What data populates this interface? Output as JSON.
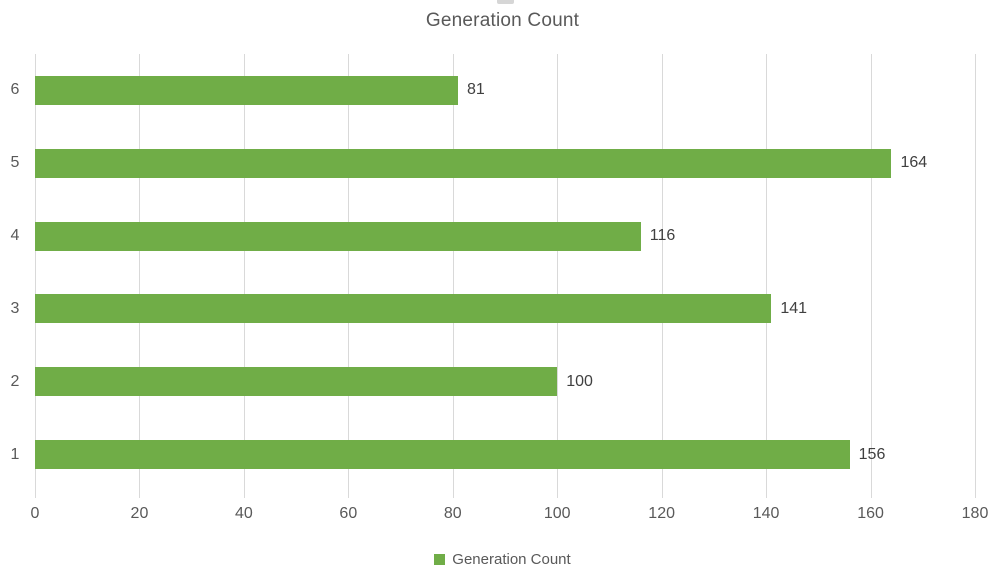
{
  "title": "Generation Count",
  "legend": {
    "label": "Generation Count"
  },
  "colors": {
    "bar": "#70AD47",
    "gridline": "#D9D9D9",
    "title_text": "#595959",
    "axis_text": "#595959",
    "data_label_text": "#404040",
    "legend_text": "#595959"
  },
  "chart_data": {
    "type": "bar",
    "orientation": "horizontal",
    "title": "Generation Count",
    "series_name": "Generation Count",
    "categories": [
      "6",
      "5",
      "4",
      "3",
      "2",
      "1"
    ],
    "values": [
      81,
      164,
      116,
      141,
      100,
      156
    ],
    "data_labels": [
      "81",
      "164",
      "116",
      "141",
      "100",
      "156"
    ],
    "xlabel": "",
    "ylabel": "",
    "xlim": [
      0,
      180
    ],
    "x_ticks": [
      0,
      20,
      40,
      60,
      80,
      100,
      120,
      140,
      160,
      180
    ],
    "grid": true,
    "legend_position": "bottom"
  }
}
